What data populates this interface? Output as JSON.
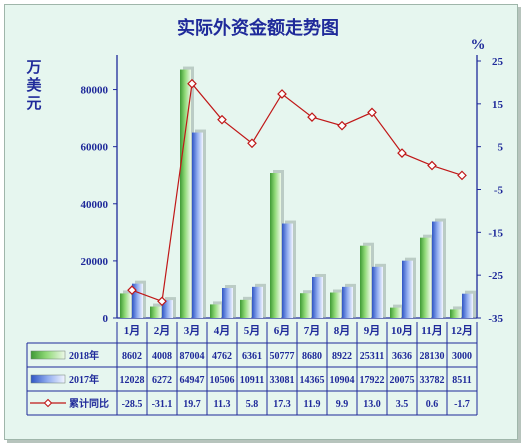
{
  "chart_data": {
    "type": "bar",
    "title": "实际外资金额走势图",
    "ylabel": "万美元",
    "y2label": "%",
    "ylim": [
      0,
      90000
    ],
    "y2lim": [
      -35,
      25
    ],
    "yticks": [
      "0",
      "20000",
      "40000",
      "60000",
      "80000"
    ],
    "y2ticks": [
      "-35",
      "-25",
      "-15",
      "-5",
      "5",
      "15",
      "25"
    ],
    "categories": [
      "1月",
      "2月",
      "3月",
      "4月",
      "5月",
      "6月",
      "7月",
      "8月",
      "9月",
      "10月",
      "11月",
      "12月"
    ],
    "series": [
      {
        "name": "2018年",
        "type": "bar",
        "color": "#5cbf4a",
        "values": [
          8602,
          4008,
          87004,
          4762,
          6361,
          50777,
          8680,
          8922,
          25311,
          3636,
          28130,
          3000
        ],
        "labels": [
          "8602",
          "4008",
          "87004",
          "4762",
          "6361",
          "50777",
          "8680",
          "8922",
          "25311",
          "3636",
          "28130",
          "3000"
        ]
      },
      {
        "name": "2017年",
        "type": "bar",
        "color": "#4a6fd8",
        "values": [
          12028,
          6272,
          64947,
          10506,
          10911,
          33081,
          14365,
          10904,
          17922,
          20075,
          33782,
          8511
        ],
        "labels": [
          "12028",
          "6272",
          "64947",
          "10506",
          "10911",
          "33081",
          "14365",
          "10904",
          "17922",
          "20075",
          "33782",
          "8511"
        ]
      },
      {
        "name": "累计同比",
        "type": "line",
        "axis": "right",
        "color": "#c01818",
        "values": [
          -28.5,
          -31.1,
          19.7,
          11.3,
          5.8,
          17.3,
          11.9,
          9.9,
          13.0,
          3.5,
          0.6,
          -1.7
        ],
        "labels": [
          "-28.5",
          "-31.1",
          "19.7",
          "11.3",
          "5.8",
          "17.3",
          "11.9",
          "9.9",
          "13.0",
          "3.5",
          "0.6",
          "-1.7"
        ]
      }
    ],
    "legend": "table-below",
    "grid": false
  }
}
